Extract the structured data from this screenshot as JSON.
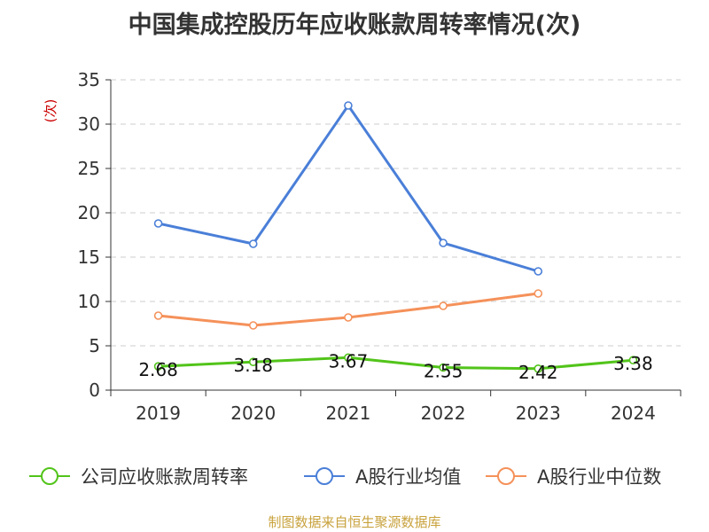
{
  "chart_data": {
    "type": "line",
    "title": "中国集成控股历年应收账款周转率情况(次)",
    "ylabel": "(次)",
    "xlabel": "",
    "categories": [
      "2019",
      "2020",
      "2021",
      "2022",
      "2023",
      "2024"
    ],
    "ylim": [
      0,
      35
    ],
    "yticks": [
      0,
      5,
      10,
      15,
      20,
      25,
      30,
      35
    ],
    "grid": true,
    "legend_position": "bottom",
    "series": [
      {
        "name": "公司应收账款周转率",
        "color": "#52c41a",
        "values": [
          2.68,
          3.18,
          3.67,
          2.55,
          2.42,
          3.38
        ],
        "labels": [
          "2.68",
          "3.18",
          "3.67",
          "2.55",
          "2.42",
          "3.38"
        ]
      },
      {
        "name": "A股行业均值",
        "color": "#4a7fd8",
        "values": [
          18.8,
          16.5,
          32.1,
          16.6,
          13.4,
          null
        ]
      },
      {
        "name": "A股行业中位数",
        "color": "#f5915a",
        "values": [
          8.4,
          7.3,
          8.2,
          9.5,
          10.9,
          null
        ]
      }
    ]
  },
  "source": "制图数据来自恒生聚源数据库"
}
